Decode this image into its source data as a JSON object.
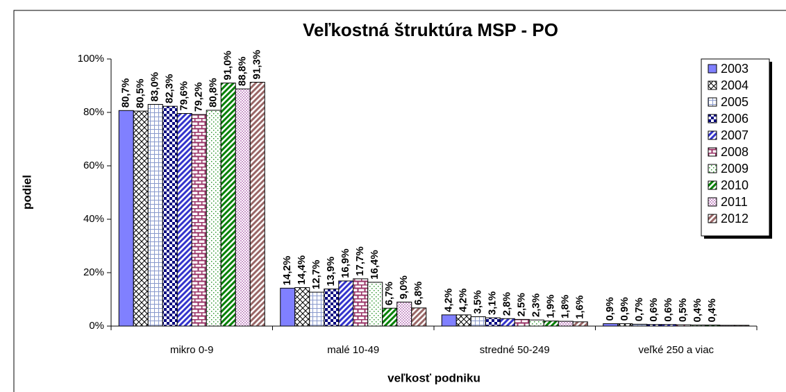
{
  "chart_data": {
    "type": "bar",
    "title": "Veľkostná štruktúra MSP - PO",
    "y_label": "podiel",
    "x_label": "veľkosť podniku",
    "categories": [
      "mikro 0-9",
      "malé 10-49",
      "stredné 50-249",
      "veľké 250 a viac"
    ],
    "ylim": [
      0,
      100
    ],
    "yticks": [
      {
        "value": 0,
        "label": "0%"
      },
      {
        "value": 20,
        "label": "20%"
      },
      {
        "value": 40,
        "label": "40%"
      },
      {
        "value": 60,
        "label": "60%"
      },
      {
        "value": 80,
        "label": "80%"
      },
      {
        "value": 100,
        "label": "100%"
      }
    ],
    "legend": "top-right",
    "series": [
      {
        "name": "2003",
        "color": "#8080ff",
        "values": [
          80.7,
          14.2,
          4.2,
          0.9
        ],
        "value_labels": [
          "80,7%",
          "14,2%",
          "4,2%",
          "0,9%"
        ]
      },
      {
        "name": "2004",
        "color": "#000000",
        "values": [
          80.5,
          14.4,
          4.2,
          0.9
        ],
        "value_labels": [
          "80,5%",
          "14,4%",
          "4,2%",
          "0,9%"
        ]
      },
      {
        "name": "2005",
        "color": "#8899cc",
        "values": [
          83.0,
          12.7,
          3.5,
          0.7
        ],
        "value_labels": [
          "83,0%",
          "12,7%",
          "3,5%",
          "0,7%"
        ]
      },
      {
        "name": "2006",
        "color": "#000080",
        "values": [
          82.3,
          13.9,
          3.1,
          0.6
        ],
        "value_labels": [
          "82,3%",
          "13,9%",
          "3,1%",
          "0,6%"
        ]
      },
      {
        "name": "2007",
        "color": "#3333cc",
        "values": [
          79.6,
          16.9,
          2.8,
          0.6
        ],
        "value_labels": [
          "79,6%",
          "16,9%",
          "2,8%",
          "0,6%"
        ]
      },
      {
        "name": "2008",
        "color": "#993366",
        "values": [
          79.2,
          17.7,
          2.5,
          0.5
        ],
        "value_labels": [
          "79,2%",
          "17,7%",
          "2,5%",
          "0,5%"
        ]
      },
      {
        "name": "2009",
        "color": "#339933",
        "values": [
          80.8,
          16.4,
          2.3,
          0.4
        ],
        "value_labels": [
          "80,8%",
          "16,4%",
          "2,3%",
          "0,4%"
        ]
      },
      {
        "name": "2010",
        "color": "#008000",
        "values": [
          91.0,
          6.7,
          1.9,
          0.4
        ],
        "value_labels": [
          "91,0%",
          "6,7%",
          "1,9%",
          "0,4%"
        ]
      },
      {
        "name": "2011",
        "color": "#cc99cc",
        "values": [
          88.8,
          9.0,
          1.8,
          0.3
        ],
        "value_labels": [
          "88,8%",
          "9,0%",
          "1,8%",
          null
        ]
      },
      {
        "name": "2012",
        "color": "#996666",
        "values": [
          91.3,
          6.8,
          1.6,
          0.3
        ],
        "value_labels": [
          "91,3%",
          "6,8%",
          "1,6%",
          null
        ]
      }
    ]
  }
}
